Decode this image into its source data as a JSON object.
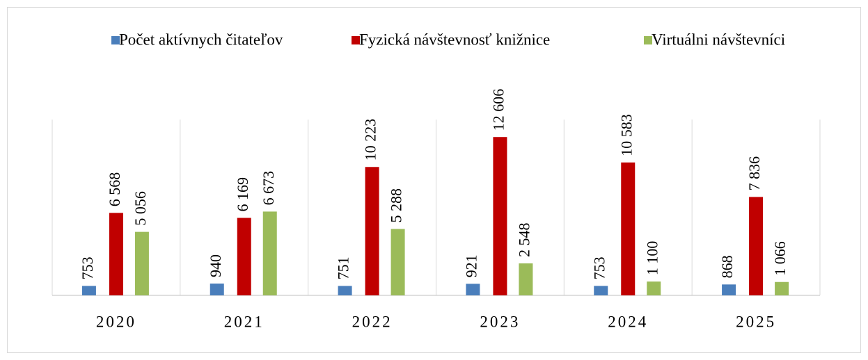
{
  "chart_data": {
    "type": "bar",
    "categories": [
      "2020",
      "2021",
      "2022",
      "2023",
      "2024",
      "2025"
    ],
    "series": [
      {
        "name": "Počet aktívnych čitateľov",
        "color": "#4a7ebb",
        "values": [
          753,
          940,
          751,
          921,
          753,
          868
        ],
        "value_labels": [
          "753",
          "940",
          "751",
          "921",
          "753",
          "868"
        ]
      },
      {
        "name": "Fyzická návštevnosť knižnice",
        "color": "#c00000",
        "values": [
          6568,
          6169,
          10223,
          12606,
          10583,
          7836
        ],
        "value_labels": [
          "6 568",
          "6 169",
          "10 223",
          "12 606",
          "10 583",
          "7 836"
        ]
      },
      {
        "name": "Virtuálni návštevníci",
        "color": "#9bbb59",
        "values": [
          5056,
          6673,
          5288,
          2548,
          1100,
          1066
        ],
        "value_labels": [
          "5 056",
          "6 673",
          "5 288",
          "2 548",
          "1 100",
          "1 066"
        ]
      }
    ],
    "ylim": [
      0,
      14000
    ],
    "legend": "top"
  }
}
